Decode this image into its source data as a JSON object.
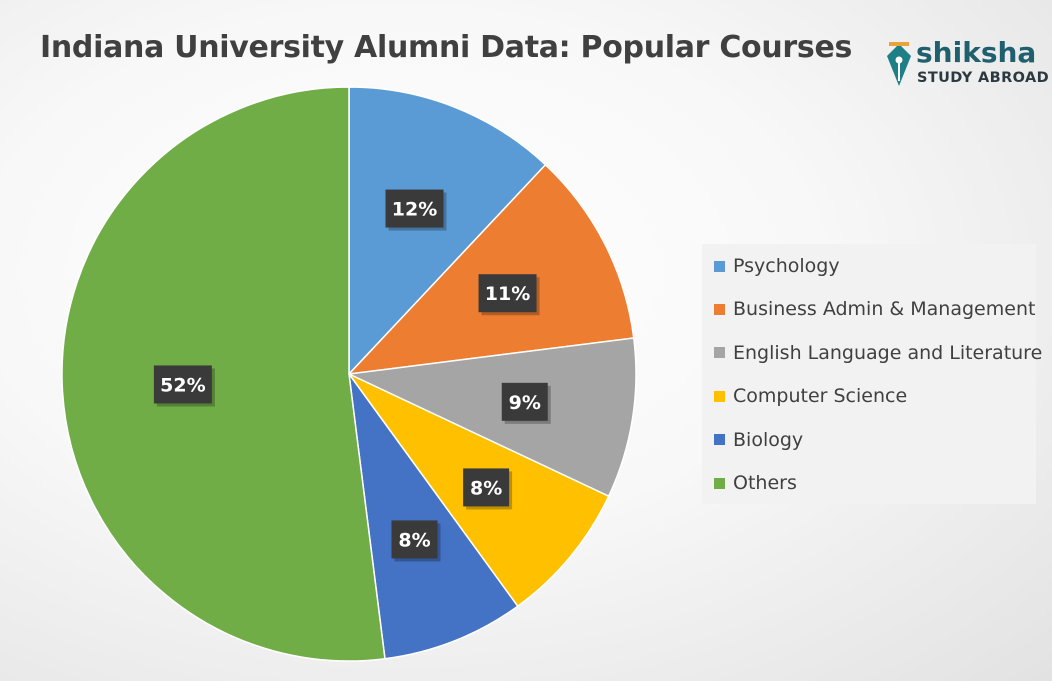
{
  "title": "Indiana University Alumni Data: Popular Courses",
  "logo": {
    "brand": "shiksha",
    "tagline": "STUDY ABROAD"
  },
  "chart_data": {
    "type": "pie",
    "title": "Indiana University Alumni Data: Popular Courses",
    "legend_position": "right",
    "slices": [
      {
        "label": "Psychology",
        "value": 12,
        "display": "12%",
        "color": "#5B9BD5"
      },
      {
        "label": "Business Admin & Management",
        "value": 11,
        "display": "11%",
        "color": "#ED7D31"
      },
      {
        "label": "English Language and Literature",
        "value": 9,
        "display": "9%",
        "color": "#A5A5A5"
      },
      {
        "label": "Computer Science",
        "value": 8,
        "display": "8%",
        "color": "#FFC000"
      },
      {
        "label": "Biology",
        "value": 8,
        "display": "8%",
        "color": "#4472C4"
      },
      {
        "label": "Others",
        "value": 52,
        "display": "52%",
        "color": "#70AD47"
      }
    ]
  }
}
